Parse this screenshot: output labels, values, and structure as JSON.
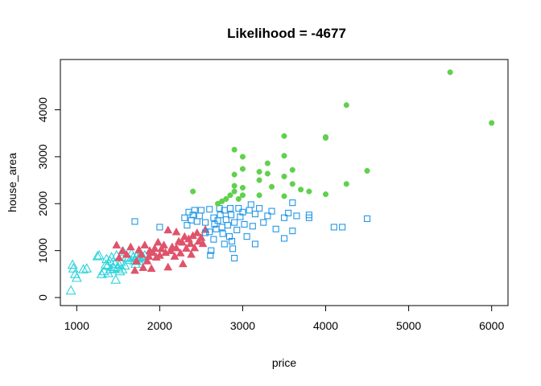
{
  "chart_data": {
    "type": "scatter",
    "title": "Likelihood = -4677",
    "xlabel": "price",
    "ylabel": "house_area",
    "xlim": [
      900,
      6100
    ],
    "ylim": [
      0,
      4900
    ],
    "xticks": [
      1000,
      2000,
      3000,
      4000,
      5000,
      6000
    ],
    "yticks": [
      0,
      1000,
      2000,
      3000,
      4000
    ],
    "grid": false,
    "legend": "none",
    "series": [
      {
        "marker": "open-triangle",
        "color": "#2CD3DB",
        "points": [
          [
            930,
            150
          ],
          [
            950,
            700
          ],
          [
            960,
            620
          ],
          [
            980,
            500
          ],
          [
            1000,
            420
          ],
          [
            1080,
            600
          ],
          [
            1120,
            620
          ],
          [
            1250,
            880
          ],
          [
            1270,
            900
          ],
          [
            1300,
            500
          ],
          [
            1330,
            560
          ],
          [
            1350,
            700
          ],
          [
            1370,
            680
          ],
          [
            1380,
            520
          ],
          [
            1400,
            780
          ],
          [
            1410,
            600
          ],
          [
            1420,
            860
          ],
          [
            1440,
            650
          ],
          [
            1460,
            720
          ],
          [
            1470,
            380
          ],
          [
            1480,
            900
          ],
          [
            1500,
            640
          ],
          [
            1510,
            700
          ],
          [
            1530,
            760
          ],
          [
            1550,
            600
          ],
          [
            1560,
            980
          ],
          [
            1580,
            680
          ],
          [
            1600,
            870
          ],
          [
            1620,
            840
          ],
          [
            1640,
            800
          ],
          [
            1660,
            940
          ],
          [
            1680,
            860
          ],
          [
            1700,
            780
          ],
          [
            1710,
            720
          ],
          [
            1720,
            880
          ],
          [
            1730,
            900
          ],
          [
            1740,
            830
          ],
          [
            1750,
            780
          ],
          [
            1760,
            850
          ],
          [
            1780,
            880
          ],
          [
            1800,
            860
          ],
          [
            1820,
            900
          ],
          [
            1450,
            620
          ],
          [
            1360,
            820
          ],
          [
            1520,
            560
          ]
        ]
      },
      {
        "marker": "filled-triangle",
        "color": "#DF536B",
        "points": [
          [
            1480,
            1120
          ],
          [
            1510,
            850
          ],
          [
            1550,
            1000
          ],
          [
            1600,
            920
          ],
          [
            1650,
            1080
          ],
          [
            1700,
            580
          ],
          [
            1720,
            780
          ],
          [
            1750,
            1020
          ],
          [
            1780,
            920
          ],
          [
            1800,
            640
          ],
          [
            1820,
            1120
          ],
          [
            1850,
            780
          ],
          [
            1870,
            880
          ],
          [
            1880,
            1000
          ],
          [
            1900,
            620
          ],
          [
            1920,
            960
          ],
          [
            1940,
            1050
          ],
          [
            1960,
            860
          ],
          [
            1980,
            1180
          ],
          [
            2000,
            900
          ],
          [
            2020,
            1040
          ],
          [
            2050,
            1120
          ],
          [
            2070,
            960
          ],
          [
            2100,
            1440
          ],
          [
            2100,
            650
          ],
          [
            2130,
            1000
          ],
          [
            2150,
            1080
          ],
          [
            2180,
            880
          ],
          [
            2200,
            1060
          ],
          [
            2200,
            1400
          ],
          [
            2230,
            1200
          ],
          [
            2250,
            950
          ],
          [
            2270,
            1180
          ],
          [
            2300,
            1300
          ],
          [
            2320,
            1050
          ],
          [
            2350,
            1250
          ],
          [
            2370,
            1150
          ],
          [
            2400,
            1320
          ],
          [
            2420,
            1060
          ],
          [
            2450,
            1380
          ],
          [
            2470,
            1200
          ],
          [
            2500,
            1280
          ],
          [
            2520,
            1150
          ],
          [
            2550,
            1450
          ],
          [
            2280,
            720
          ],
          [
            2380,
            920
          ]
        ]
      },
      {
        "marker": "open-square",
        "color": "#2297E6",
        "points": [
          [
            1700,
            1620
          ],
          [
            2000,
            1500
          ],
          [
            2300,
            1700
          ],
          [
            2330,
            1540
          ],
          [
            2350,
            1820
          ],
          [
            2380,
            1650
          ],
          [
            2400,
            1760
          ],
          [
            2420,
            1860
          ],
          [
            2450,
            1620
          ],
          [
            2480,
            1740
          ],
          [
            2500,
            1860
          ],
          [
            2550,
            1600
          ],
          [
            2600,
            1880
          ],
          [
            2600,
            1400
          ],
          [
            2610,
            900
          ],
          [
            2620,
            1000
          ],
          [
            2650,
            1700
          ],
          [
            2660,
            1560
          ],
          [
            2680,
            1460
          ],
          [
            2700,
            1640
          ],
          [
            2720,
            1900
          ],
          [
            2730,
            1760
          ],
          [
            2750,
            1500
          ],
          [
            2760,
            1360
          ],
          [
            2780,
            1860
          ],
          [
            2800,
            1660
          ],
          [
            2820,
            1540
          ],
          [
            2840,
            1300
          ],
          [
            2850,
            1900
          ],
          [
            2860,
            1760
          ],
          [
            2870,
            1200
          ],
          [
            2880,
            1040
          ],
          [
            2900,
            1600
          ],
          [
            2900,
            840
          ],
          [
            2930,
            1440
          ],
          [
            2950,
            1900
          ],
          [
            2970,
            1720
          ],
          [
            3000,
            1820
          ],
          [
            3020,
            1560
          ],
          [
            3050,
            1300
          ],
          [
            3080,
            1860
          ],
          [
            3100,
            1980
          ],
          [
            3120,
            1520
          ],
          [
            3150,
            1780
          ],
          [
            3200,
            1900
          ],
          [
            3250,
            1600
          ],
          [
            3300,
            1740
          ],
          [
            3350,
            1840
          ],
          [
            3400,
            1460
          ],
          [
            3500,
            1700
          ],
          [
            3550,
            1800
          ],
          [
            3600,
            2020
          ],
          [
            3650,
            1740
          ],
          [
            3800,
            1760
          ],
          [
            4100,
            1500
          ],
          [
            4200,
            1500
          ],
          [
            4500,
            1680
          ],
          [
            3500,
            1260
          ],
          [
            3600,
            1420
          ],
          [
            3800,
            1700
          ],
          [
            2650,
            1240
          ],
          [
            2550,
            1380
          ],
          [
            2780,
            1140
          ],
          [
            3150,
            1140
          ]
        ]
      },
      {
        "marker": "filled-circle",
        "color": "#61D04F",
        "points": [
          [
            2400,
            2260
          ],
          [
            2700,
            2000
          ],
          [
            2750,
            2050
          ],
          [
            2800,
            2100
          ],
          [
            2850,
            2180
          ],
          [
            2900,
            2260
          ],
          [
            2900,
            3150
          ],
          [
            2900,
            2620
          ],
          [
            2900,
            2380
          ],
          [
            3000,
            2740
          ],
          [
            3000,
            3000
          ],
          [
            3000,
            2340
          ],
          [
            3000,
            2180
          ],
          [
            3200,
            2680
          ],
          [
            3200,
            2500
          ],
          [
            3200,
            2180
          ],
          [
            3300,
            2860
          ],
          [
            3300,
            2640
          ],
          [
            3350,
            2360
          ],
          [
            3500,
            3440
          ],
          [
            3500,
            3020
          ],
          [
            3500,
            2580
          ],
          [
            3500,
            2160
          ],
          [
            3600,
            2720
          ],
          [
            3600,
            2420
          ],
          [
            3700,
            2300
          ],
          [
            3800,
            2260
          ],
          [
            4000,
            3420
          ],
          [
            4000,
            3400
          ],
          [
            4000,
            2200
          ],
          [
            4250,
            4100
          ],
          [
            4250,
            2420
          ],
          [
            4500,
            2700
          ],
          [
            5500,
            4800
          ],
          [
            6000,
            3720
          ],
          [
            2950,
            2100
          ]
        ]
      }
    ]
  }
}
